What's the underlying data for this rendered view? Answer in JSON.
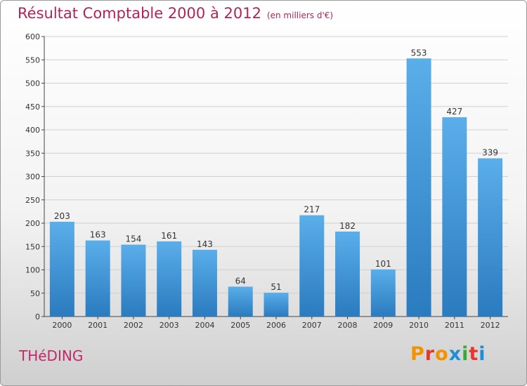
{
  "header": {
    "title": "Résultat Comptable 2000 à 2012",
    "subtitle": "(en milliers d'€)"
  },
  "footer": {
    "town": "THéDING",
    "brand": "Proxiti"
  },
  "colors": {
    "title": "#b0245a",
    "bar_light": "#5aaee9",
    "bar_dark": "#2a7bbf",
    "grid": "#d0d0d0",
    "brand_letters": [
      "#f39200",
      "#e8362d",
      "#f39200",
      "#1e8fd6",
      "#3aa935",
      "#e8362d",
      "#1e8fd6"
    ]
  },
  "chart_data": {
    "type": "bar",
    "categories": [
      "2000",
      "2001",
      "2002",
      "2003",
      "2004",
      "2005",
      "2006",
      "2007",
      "2008",
      "2009",
      "2010",
      "2011",
      "2012"
    ],
    "values": [
      203,
      163,
      154,
      161,
      143,
      64,
      51,
      217,
      182,
      101,
      553,
      427,
      339
    ],
    "title": "Résultat Comptable 2000 à 2012",
    "xlabel": "",
    "ylabel": "",
    "ylim": [
      0,
      600
    ],
    "yticks": [
      0,
      50,
      100,
      150,
      200,
      250,
      300,
      350,
      400,
      450,
      500,
      550,
      600
    ],
    "grid": true,
    "legend": "none"
  }
}
